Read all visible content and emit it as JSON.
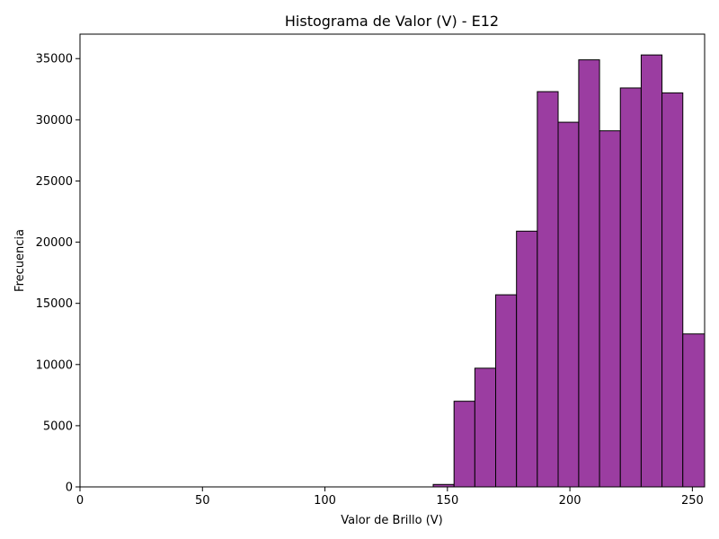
{
  "chart_data": {
    "type": "bar",
    "title": "Histograma de Valor (V) - E12",
    "xlabel": "Valor de Brillo (V)",
    "ylabel": "Frecuencia",
    "xlim": [
      0,
      255
    ],
    "ylim": [
      0,
      37000
    ],
    "xticks": [
      0,
      50,
      100,
      150,
      200,
      250
    ],
    "yticks": [
      0,
      5000,
      10000,
      15000,
      20000,
      25000,
      30000,
      35000
    ],
    "bar_color": "#9b3da1",
    "edge_color": "#000000",
    "grid": false,
    "bins": [
      {
        "x0": 144.2,
        "x1": 152.7,
        "value": 200
      },
      {
        "x0": 152.7,
        "x1": 161.2,
        "value": 7000
      },
      {
        "x0": 161.2,
        "x1": 169.7,
        "value": 9700
      },
      {
        "x0": 169.7,
        "x1": 178.2,
        "value": 15700
      },
      {
        "x0": 178.2,
        "x1": 186.7,
        "value": 20900
      },
      {
        "x0": 186.7,
        "x1": 195.2,
        "value": 32300
      },
      {
        "x0": 195.2,
        "x1": 203.6,
        "value": 29800
      },
      {
        "x0": 203.6,
        "x1": 212.1,
        "value": 34900
      },
      {
        "x0": 212.1,
        "x1": 220.6,
        "value": 29100
      },
      {
        "x0": 220.6,
        "x1": 229.1,
        "value": 32600
      },
      {
        "x0": 229.1,
        "x1": 237.6,
        "value": 35300
      },
      {
        "x0": 237.6,
        "x1": 246.1,
        "value": 32200
      },
      {
        "x0": 246.1,
        "x1": 255.0,
        "value": 12500
      }
    ]
  }
}
